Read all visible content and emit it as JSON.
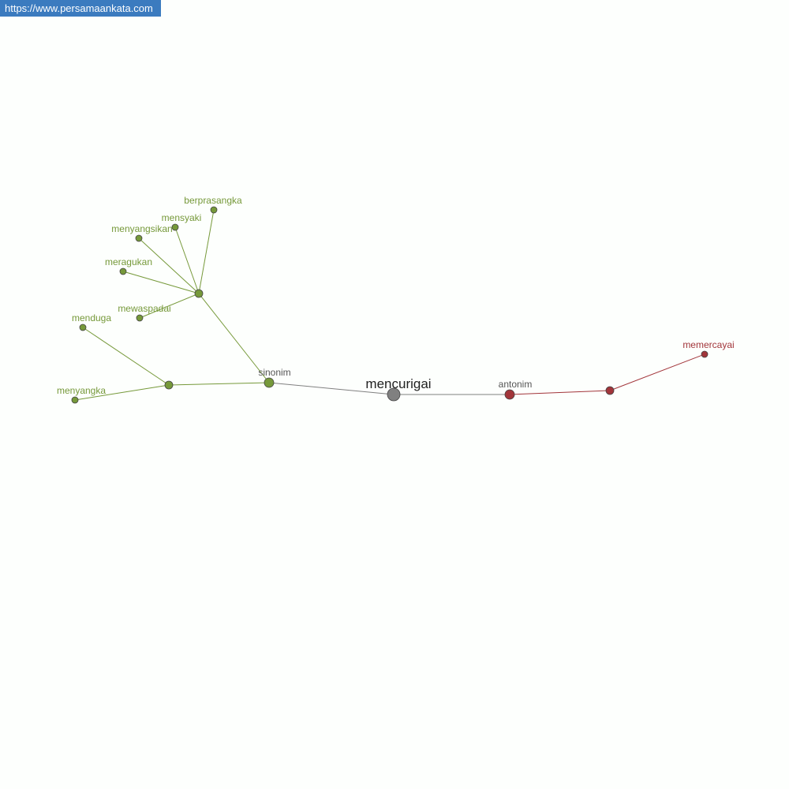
{
  "site_url": "https://www.persamaankata.com",
  "colors": {
    "synonym": "#76993a",
    "antonym": "#a2353a",
    "center": "#808080",
    "relation_label": "#555555"
  },
  "graph": {
    "center": "mencurigai",
    "relations": [
      {
        "id": "sinonim",
        "label": "sinonim",
        "group": "synonym"
      },
      {
        "id": "antonim",
        "label": "antonim",
        "group": "antonym"
      }
    ],
    "words": [
      {
        "id": "berprasangka",
        "label": "berprasangka",
        "group": "synonym"
      },
      {
        "id": "mensyaki",
        "label": "mensyaki",
        "group": "synonym"
      },
      {
        "id": "menyangsikan",
        "label": "menyangsikan",
        "group": "synonym"
      },
      {
        "id": "meragukan",
        "label": "meragukan",
        "group": "synonym"
      },
      {
        "id": "mewaspadai",
        "label": "mewaspadai",
        "group": "synonym"
      },
      {
        "id": "menduga",
        "label": "menduga",
        "group": "synonym"
      },
      {
        "id": "menyangka",
        "label": "menyangka",
        "group": "synonym"
      },
      {
        "id": "memercayai",
        "label": "memercayai",
        "group": "antonym"
      }
    ]
  }
}
